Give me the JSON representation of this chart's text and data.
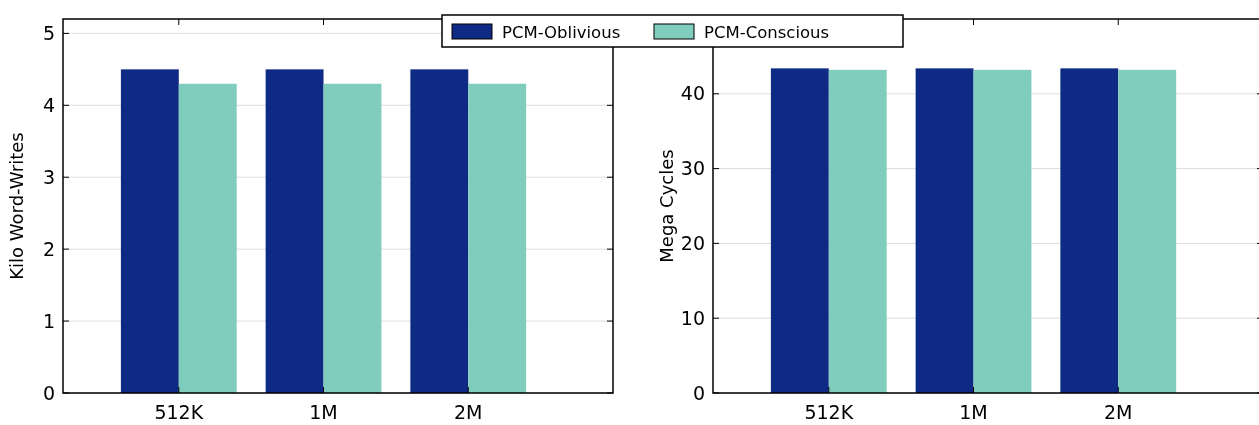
{
  "chart_data": [
    {
      "type": "bar",
      "ylabel": "Kilo Word-Writes",
      "categories": [
        "512K",
        "1M",
        "2M"
      ],
      "ylim": [
        0,
        5.2
      ],
      "yticks": [
        0,
        1,
        2,
        3,
        4,
        5
      ],
      "grid": "y",
      "legend": "top right",
      "series": [
        {
          "name": "PCM-Oblivious",
          "color": "#0e2a84",
          "values": [
            4.5,
            4.5,
            4.5
          ]
        },
        {
          "name": "PCM-Conscious",
          "color": "#80cdbd",
          "values": [
            4.3,
            4.3,
            4.3
          ]
        }
      ]
    },
    {
      "type": "bar",
      "ylabel": "Mega Cycles",
      "categories": [
        "512K",
        "1M",
        "2M"
      ],
      "ylim": [
        0,
        50
      ],
      "yticks": [
        0,
        10,
        20,
        30,
        40
      ],
      "grid": "y",
      "series": [
        {
          "color": "#0e2a84",
          "values": [
            43.4,
            43.4,
            43.4
          ]
        },
        {
          "color": "#80cdbd",
          "values": [
            43.2,
            43.2,
            43.2
          ]
        }
      ]
    }
  ]
}
